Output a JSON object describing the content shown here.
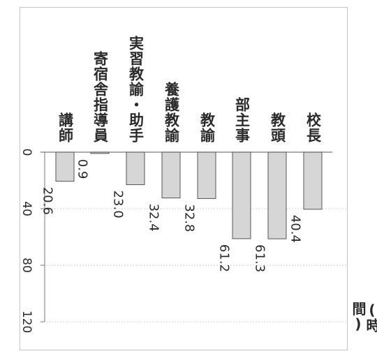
{
  "chart_data": {
    "type": "bar",
    "orientation": "vertical-text",
    "categories": [
      "校長",
      "教頭",
      "部主事",
      "教諭",
      "養護教諭",
      "実習教諭・助手",
      "寄宿舎指導員",
      "講師"
    ],
    "values": [
      40.4,
      61.3,
      61.2,
      32.8,
      32.4,
      23.0,
      0.9,
      20.6
    ],
    "value_labels": [
      "40.4",
      "61.3",
      "61.2",
      "32.8",
      "32.4",
      "23.0",
      "0.9",
      "20.6"
    ],
    "axis_ticks": [
      0,
      40,
      80,
      120
    ],
    "axis_range": [
      0,
      120
    ],
    "unit": "(時間)",
    "grid": true,
    "colors": {
      "bar_fill": "#d6d6d6",
      "bar_stroke": "#555555",
      "grid": "#d2d2d2",
      "axis": "#7a7a7a",
      "text": "#2a2a2a"
    }
  }
}
